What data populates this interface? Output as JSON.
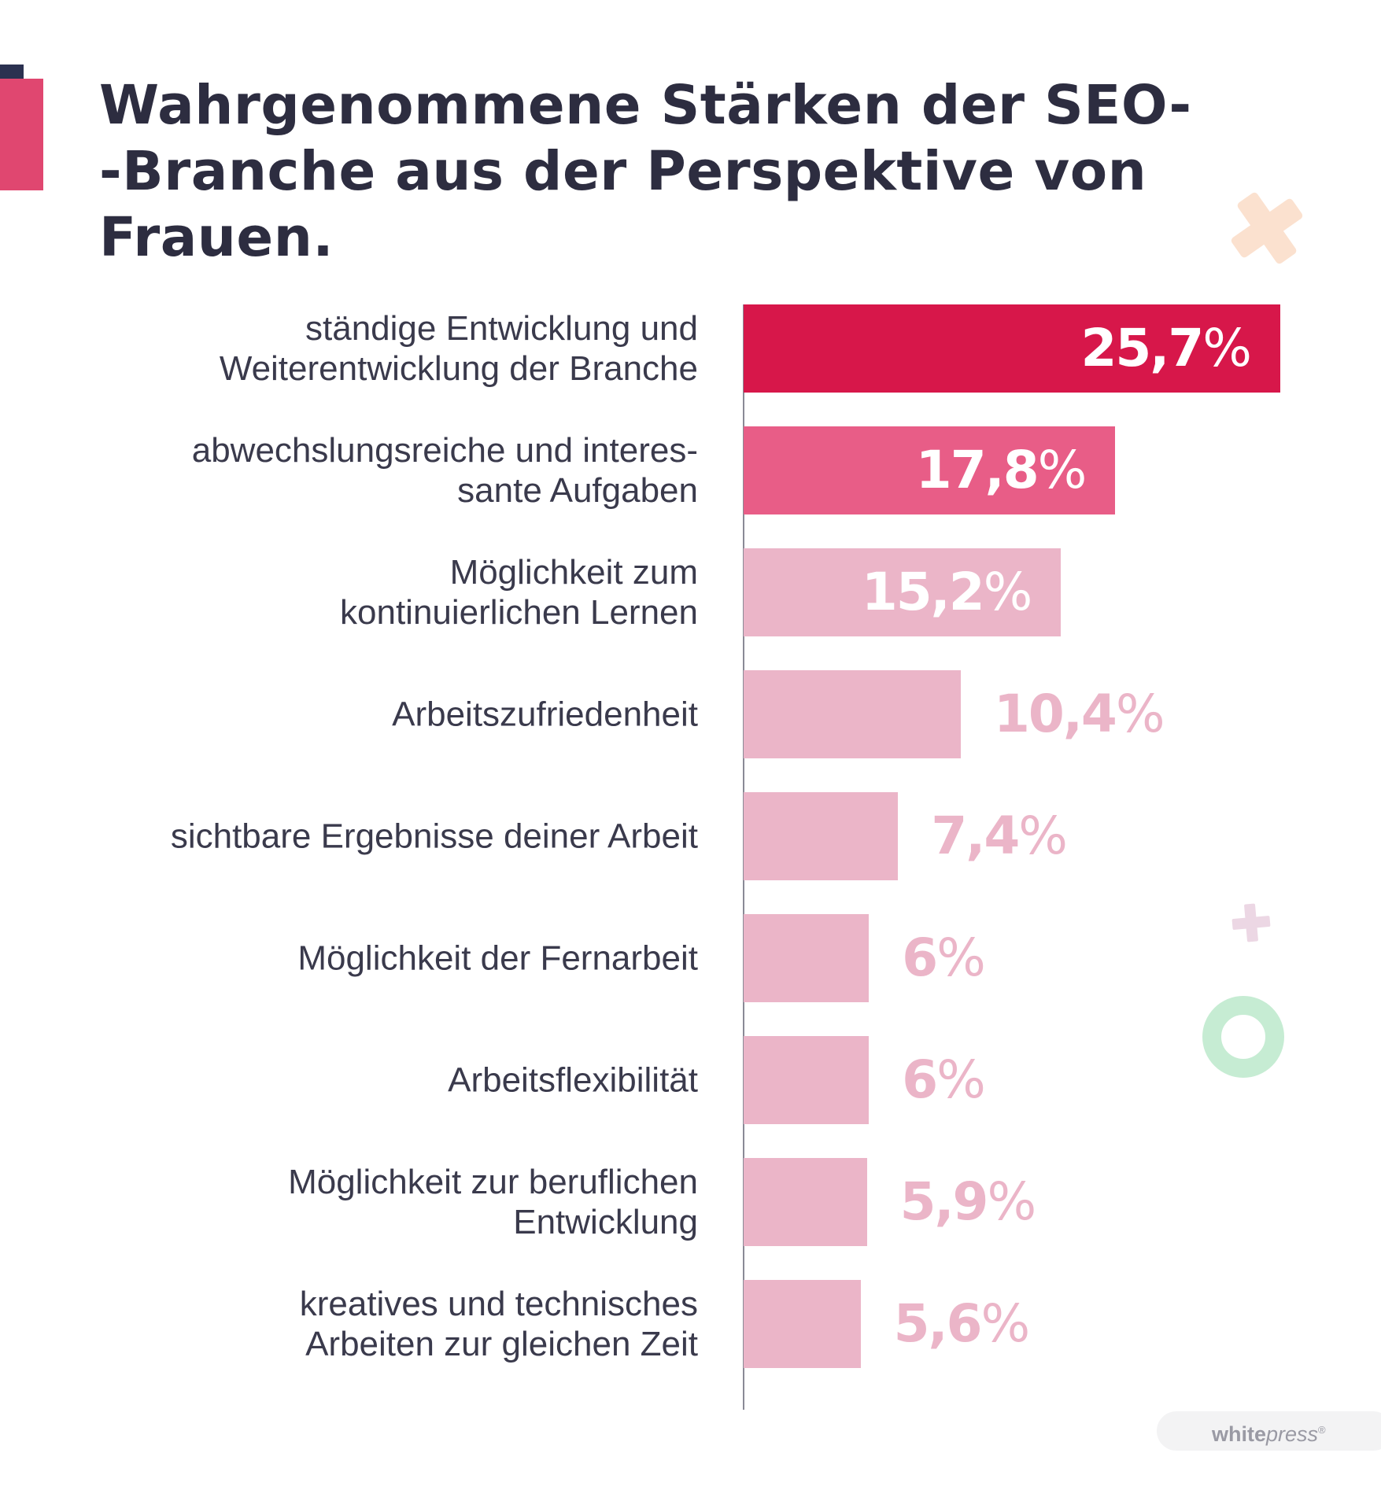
{
  "title": {
    "line1": "Wahrgenommene Stärken der SEO-",
    "line2": "-Branche aus der Perspektive von",
    "line3": "Frauen."
  },
  "chart_data": {
    "type": "bar",
    "orientation": "horizontal",
    "title": "Wahrgenommene Stärken der SEO--Branche aus der Perspektive von Frauen.",
    "xlabel": "",
    "ylabel": "",
    "xlim": [
      0,
      25.7
    ],
    "unit": "%",
    "categories": [
      [
        "ständige Entwicklung und",
        "Weiterentwicklung der Branche"
      ],
      [
        "abwechslungsreiche und interes-",
        "sante Aufgaben"
      ],
      [
        "Möglichkeit zum",
        "kontinuierlichen Lernen"
      ],
      [
        "Arbeitszufriedenheit"
      ],
      [
        "sichtbare Ergebnisse deiner Arbeit"
      ],
      [
        "Möglichkeit der Fernarbeit"
      ],
      [
        "Arbeitsflexibilität"
      ],
      [
        "Möglichkeit zur beruflichen",
        "Entwicklung"
      ],
      [
        "kreatives und technisches",
        "Arbeiten zur gleichen Zeit"
      ]
    ],
    "values": [
      25.7,
      17.8,
      15.2,
      10.4,
      7.4,
      6,
      6,
      5.9,
      5.6
    ],
    "value_labels": [
      "25,7",
      "17,8",
      "15,2",
      "10,4",
      "7,4",
      "6",
      "6",
      "5,9",
      "5,6"
    ],
    "percent_sign": "%",
    "colors": [
      "#d7174a",
      "#e85d87",
      "#ebb5c8",
      "#ebb5c8",
      "#ebb5c8",
      "#ebb5c8",
      "#ebb5c8",
      "#ebb5c8",
      "#ebb5c8"
    ],
    "outside_label_color": "#ebb5c8",
    "inside_label_color": "#ffffff"
  },
  "colors": {
    "title": "#2d2d40",
    "axis": "#8a8a96",
    "deco_navy": "#2b3150",
    "deco_pink": "#e04770",
    "deco_peach": "#fbe1cf",
    "deco_lilac": "#ecd7e4",
    "deco_green": "#c6ecd3"
  },
  "brand": {
    "part1": "white",
    "part2": "press",
    "mark": "®"
  }
}
